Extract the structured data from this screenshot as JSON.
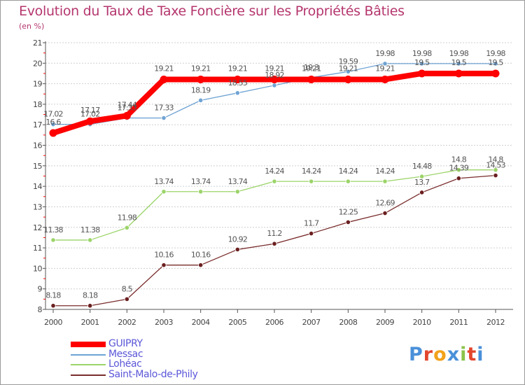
{
  "header": {
    "title": "Evolution du Taux de Taxe Foncière sur les Propriétés Bâties",
    "subtitle": "(en %)"
  },
  "brand": {
    "letters": [
      "P",
      "r",
      "o",
      "x",
      "i",
      "t",
      "i"
    ],
    "colors": [
      "#4a90d9",
      "#e2462d",
      "#f2a21b",
      "#4a90d9",
      "#8bc34a",
      "#e2462d",
      "#4a90d9"
    ]
  },
  "chart_data": {
    "type": "line",
    "title": "Evolution du Taux de Taxe Foncière sur les Propriétés Bâties",
    "subtitle": "(en %)",
    "xlabel": "",
    "ylabel": "",
    "x": [
      "2000",
      "2001",
      "2002",
      "2003",
      "2004",
      "2005",
      "2006",
      "2007",
      "2008",
      "2009",
      "2010",
      "2011",
      "2012"
    ],
    "ylim": [
      8,
      21
    ],
    "yticks": [
      8,
      9,
      10,
      11,
      12,
      13,
      14,
      15,
      16,
      17,
      18,
      19,
      20,
      21
    ],
    "grid": "horizontal",
    "legend_position": "bottom-left",
    "series": [
      {
        "name": "GUIPRY",
        "color": "#ff0000",
        "values": [
          16.6,
          17.17,
          17.44,
          19.21,
          19.21,
          19.21,
          19.21,
          19.21,
          19.21,
          19.21,
          19.5,
          19.5,
          19.5
        ],
        "labels": [
          "16.6",
          "17.17",
          "17.44",
          "19.21",
          "19.21",
          "19.21",
          "19.21",
          "19.21",
          "19.21",
          "19.21",
          "19.5",
          "19.5",
          "19.5"
        ]
      },
      {
        "name": "Messac",
        "color": "#6fa3d4",
        "values": [
          17.02,
          17.02,
          17.33,
          17.33,
          18.19,
          18.55,
          18.92,
          19.3,
          19.59,
          19.98,
          19.98,
          19.98,
          19.98
        ],
        "labels": [
          "17.02",
          "17.02",
          "17.33",
          "17.33",
          "18.19",
          "18.55",
          "18.92",
          "19.3",
          "19.59",
          "19.98",
          "19.98",
          "19.98",
          "19.98"
        ]
      },
      {
        "name": "Lohéac",
        "color": "#9cd46a",
        "values": [
          11.38,
          11.38,
          11.98,
          13.74,
          13.74,
          13.74,
          14.24,
          14.24,
          14.24,
          14.24,
          14.48,
          14.8,
          14.8
        ],
        "labels": [
          "11.38",
          "11.38",
          "11.98",
          "13.74",
          "13.74",
          "13.74",
          "14.24",
          "14.24",
          "14.24",
          "14.24",
          "14.48",
          "14.8",
          "14.8"
        ]
      },
      {
        "name": "Saint-Malo-de-Phily",
        "color": "#7a2d2d",
        "values": [
          8.18,
          8.18,
          8.5,
          10.16,
          10.16,
          10.92,
          11.2,
          11.7,
          12.25,
          12.69,
          13.7,
          14.39,
          14.53
        ],
        "labels": [
          "8.18",
          "8.18",
          "8.5",
          "10.16",
          "10.16",
          "10.92",
          "11.2",
          "11.7",
          "12.25",
          "12.69",
          "13.7",
          "14.39",
          "14.53"
        ]
      }
    ]
  }
}
